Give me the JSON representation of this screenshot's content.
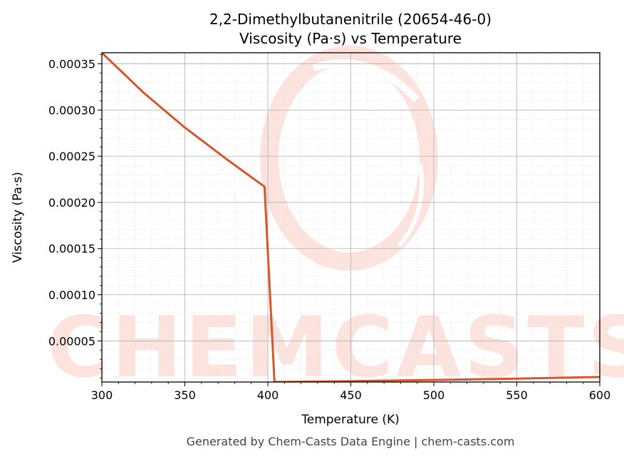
{
  "colors": {
    "series": "#d4562a",
    "grid_major": "#b0b0b0",
    "grid_minor": "#e2e2e2",
    "watermark": "#fde3de",
    "footer": "#444444"
  },
  "footer": "Generated by Chem-Casts Data Engine | chem-casts.com",
  "watermark": "CHEMCASTS",
  "chart_data": {
    "type": "line",
    "title": "2,2-Dimethylbutanenitrile (20654-46-0)",
    "subtitle": "Viscosity (Pa·s) vs Temperature",
    "xlabel": "Temperature (K)",
    "ylabel": "Viscosity (Pa·s)",
    "xlim": [
      300,
      600
    ],
    "ylim": [
      5.5e-06,
      0.000362
    ],
    "x_ticks": [
      300,
      350,
      400,
      450,
      500,
      550,
      600
    ],
    "x_tick_labels": [
      "300",
      "350",
      "400",
      "450",
      "500",
      "550",
      "600"
    ],
    "y_ticks": [
      5e-05,
      0.0001,
      0.00015,
      0.0002,
      0.00025,
      0.0003,
      0.00035
    ],
    "y_tick_labels": [
      "0.00005",
      "0.00010",
      "0.00015",
      "0.00020",
      "0.00025",
      "0.00030",
      "0.00035"
    ],
    "grid": true,
    "minor_grid": true,
    "series": [
      {
        "color": "#d4562a",
        "x": [
          300,
          325,
          350,
          375,
          398,
          404,
          450,
          500,
          550,
          600
        ],
        "y": [
          0.000362,
          0.000319,
          0.000281,
          0.000247,
          0.000217,
          5.5e-06,
          6.5e-06,
          7.7e-06,
          9.2e-06,
          1.1e-05
        ]
      }
    ]
  }
}
